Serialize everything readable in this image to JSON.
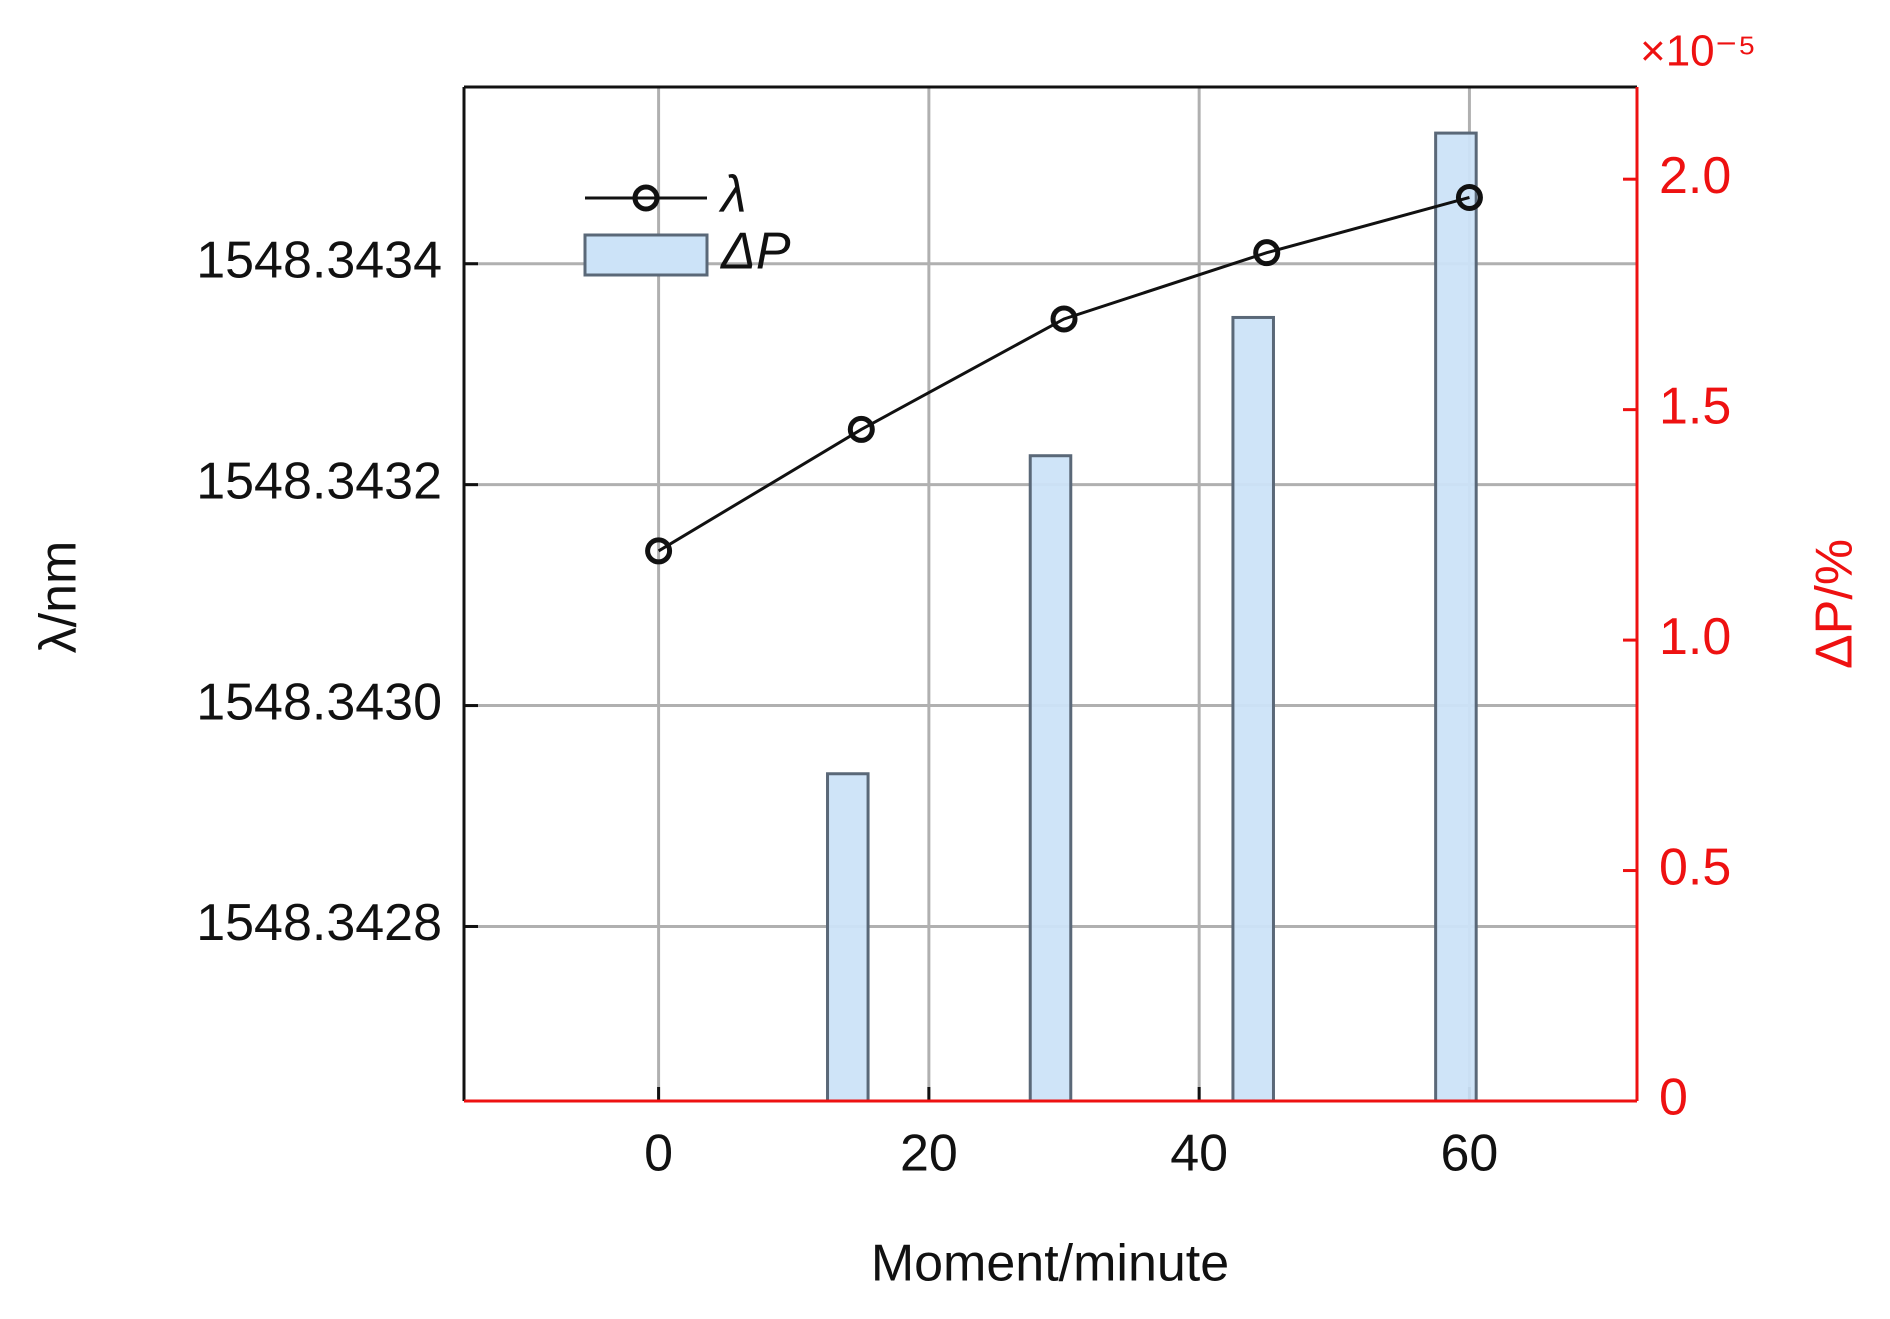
{
  "chart_data": {
    "type": "bar-line",
    "x": [
      0,
      15,
      30,
      45,
      60
    ],
    "xlim": [
      -14.4,
      72.4
    ],
    "xticks": [
      0,
      20,
      40,
      60
    ],
    "xlabel": "Moment/minute",
    "ylabel": "λ/nm",
    "y2label": "ΔP/%",
    "y2_multiplier": "×10⁻⁵",
    "ylim": [
      1548.342642,
      1548.34356
    ],
    "yticks": [
      1548.3428,
      {
        "value": 1548.343,
        "label": "1548.3430"
      },
      1548.3432,
      1548.3434
    ],
    "y2lim": [
      0,
      2.2
    ],
    "y2ticks": [
      0,
      0.5,
      {
        "value": 1,
        "label": "1.0"
      },
      1.5,
      {
        "value": 2,
        "label": "2.0"
      }
    ],
    "grid": true,
    "legend": "upper left",
    "y2color": "#ee1111",
    "series": [
      {
        "name": "λ",
        "type": "line",
        "color": "#111111",
        "values": [
          1548.34314,
          1548.34325,
          1548.34335,
          1548.34341,
          1548.34346
        ]
      },
      {
        "name": "ΔP",
        "type": "bar",
        "axis": "y2",
        "color": "#cce3f8",
        "values": [
          0,
          0.71,
          1.4,
          1.7,
          2.1
        ]
      }
    ]
  }
}
